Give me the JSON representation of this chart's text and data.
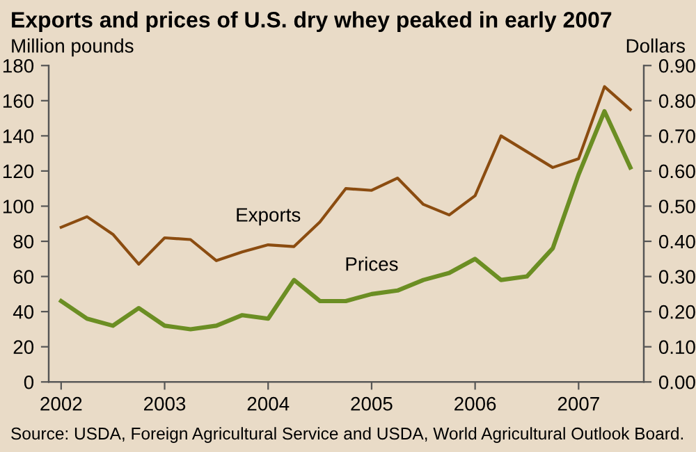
{
  "chart_data": {
    "type": "line",
    "title": "Exports and prices of U.S. dry whey peaked in early 2007",
    "ylabel": "Million pounds",
    "y2label": "Dollars",
    "x": [
      2002.0,
      2002.25,
      2002.5,
      2002.75,
      2003.0,
      2003.25,
      2003.5,
      2003.75,
      2004.0,
      2004.25,
      2004.5,
      2004.75,
      2005.0,
      2005.25,
      2005.5,
      2005.75,
      2006.0,
      2006.25,
      2006.5,
      2006.75,
      2007.0,
      2007.25,
      2007.5
    ],
    "series": [
      {
        "name": "Exports",
        "color": "#8b4c10",
        "values": [
          88,
          94,
          84,
          67,
          82,
          81,
          69,
          74,
          78,
          77,
          91,
          110,
          109,
          116,
          101,
          95,
          106,
          140,
          131,
          122,
          127,
          168,
          155
        ]
      },
      {
        "name": "Prices",
        "color": "#6b8e23",
        "axis": "y2",
        "values": [
          0.23,
          0.18,
          0.16,
          0.21,
          0.16,
          0.15,
          0.16,
          0.19,
          0.18,
          0.29,
          0.23,
          0.23,
          0.25,
          0.26,
          0.29,
          0.31,
          0.35,
          0.29,
          0.3,
          0.38,
          0.59,
          0.77,
          0.61
        ]
      }
    ],
    "xlim": [
      2001.88,
      2007.63
    ],
    "xticks": [
      2002,
      2003,
      2004,
      2005,
      2006,
      2007
    ],
    "ylim": [
      0,
      180
    ],
    "yticks": [
      0,
      20,
      40,
      60,
      80,
      100,
      120,
      140,
      160,
      180
    ],
    "y2lim": [
      0,
      0.9
    ],
    "y2ticks": [
      {
        "value": 0,
        "label": "0.00"
      },
      {
        "value": 0.1,
        "label": "0.10"
      },
      {
        "value": 0.2,
        "label": "0.20"
      },
      {
        "value": 0.3,
        "label": "0.30"
      },
      {
        "value": 0.4,
        "label": "0.40"
      },
      {
        "value": 0.5,
        "label": "0.50"
      },
      {
        "value": 0.6,
        "label": "0.60"
      },
      {
        "value": 0.7,
        "label": "0.70"
      },
      {
        "value": 0.8,
        "label": "0.80"
      },
      {
        "value": 0.9,
        "label": "0.90"
      }
    ],
    "grid": false,
    "legend": false,
    "annotations": [
      "Source: USDA, Foreign Agricultural Service and USDA, World Agricultural Outlook Board."
    ]
  }
}
